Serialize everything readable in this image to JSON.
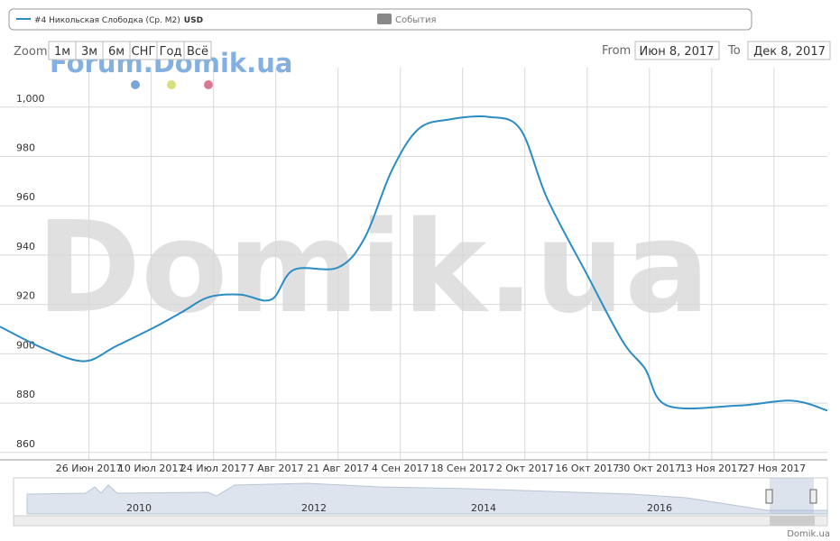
{
  "chart_data": {
    "type": "line",
    "series": [
      {
        "name": "#4 Никольская Слободка (Ср. М2)",
        "color": "#2b8cc4",
        "values": [
          911,
          902,
          897,
          903,
          911,
          917,
          923,
          924,
          922,
          934,
          935,
          947,
          974,
          991,
          995,
          996,
          991,
          963,
          932,
          905,
          894,
          879,
          879,
          881,
          877
        ]
      }
    ],
    "x": [
      "2017-06-06",
      "2017-06-16",
      "2017-06-25",
      "2017-07-02",
      "2017-07-11",
      "2017-07-17",
      "2017-07-23",
      "2017-07-30",
      "2017-08-06",
      "2017-08-11",
      "2017-08-21",
      "2017-08-27",
      "2017-09-02",
      "2017-09-08",
      "2017-09-15",
      "2017-09-24",
      "2017-10-01",
      "2017-10-07",
      "2017-10-16",
      "2017-10-24",
      "2017-10-29",
      "2017-11-03",
      "2017-11-19",
      "2017-12-01",
      "2017-12-09"
    ],
    "xlim": [
      "2017-06-06",
      "2017-12-09"
    ],
    "xticks": [
      {
        "value": "2017-06-26",
        "label": "26 Июн 2017"
      },
      {
        "value": "2017-07-10",
        "label": "10 Июл 2017"
      },
      {
        "value": "2017-07-24",
        "label": "24 Июл 2017"
      },
      {
        "value": "2017-08-07",
        "label": "7 Авг 2017"
      },
      {
        "value": "2017-08-21",
        "label": "21 Авг 2017"
      },
      {
        "value": "2017-09-04",
        "label": "4 Сен 2017"
      },
      {
        "value": "2017-09-18",
        "label": "18 Сен 2017"
      },
      {
        "value": "2017-10-02",
        "label": "2 Окт 2017"
      },
      {
        "value": "2017-10-16",
        "label": "16 Окт 2017"
      },
      {
        "value": "2017-10-30",
        "label": "30 Окт 2017"
      },
      {
        "value": "2017-11-13",
        "label": "13 Ноя 2017"
      },
      {
        "value": "2017-11-27",
        "label": "27 Ноя 2017"
      }
    ],
    "ylim": [
      857,
      1016
    ],
    "yticks": [
      860,
      880,
      900,
      920,
      940,
      960,
      980,
      {
        "value": 1000,
        "label": "1,000"
      }
    ],
    "grid": true
  },
  "ui": {
    "currency": "USD",
    "events": "События",
    "zoom_label": "Zoom",
    "zoom_buttons": [
      "1м",
      "3м",
      "6м",
      "СНГ",
      "Год",
      "Всё"
    ],
    "from_label": "From",
    "from_value": "Июн 8, 2017",
    "to_label": "To",
    "to_value": "Дек 8, 2017",
    "watermark_small": "Forum.Domik.ua",
    "watermark_big": "Domik.ua",
    "navigator_years": [
      "2010",
      "2012",
      "2014",
      "2016"
    ],
    "credit": "Domik.ua"
  }
}
